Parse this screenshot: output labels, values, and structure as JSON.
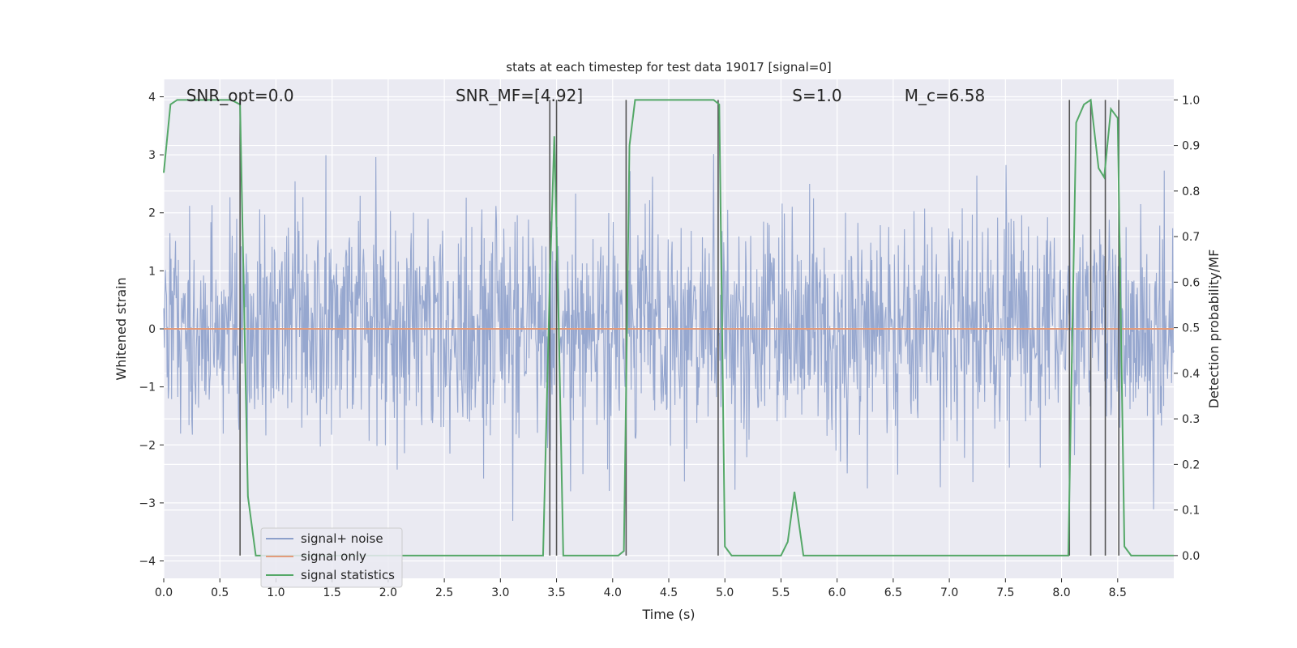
{
  "chart_data": {
    "type": "line",
    "title": "stats at each timestep for test data 19017 [signal=0]",
    "xlabel": "Time (s)",
    "ylabel": "Whitened strain",
    "ylabel_right": "Detection probability/MF",
    "xlim": [
      0,
      9
    ],
    "ylim": [
      -4.3,
      4.3
    ],
    "ylim_right": [
      -0.05,
      1.045
    ],
    "x_ticks": [
      0.0,
      0.5,
      1.0,
      1.5,
      2.0,
      2.5,
      3.0,
      3.5,
      4.0,
      4.5,
      5.0,
      5.5,
      6.0,
      6.5,
      7.0,
      7.5,
      8.0,
      8.5
    ],
    "x_tick_labels": [
      "0.0",
      "0.5",
      "1.0",
      "1.5",
      "2.0",
      "2.5",
      "3.0",
      "3.5",
      "4.0",
      "4.5",
      "5.0",
      "5.5",
      "6.0",
      "6.5",
      "7.0",
      "7.5",
      "8.0",
      "8.5"
    ],
    "y_ticks": [
      -4,
      -3,
      -2,
      -1,
      0,
      1,
      2,
      3,
      4
    ],
    "y_tick_labels": [
      "−4",
      "−3",
      "−2",
      "−1",
      "0",
      "1",
      "2",
      "3",
      "4"
    ],
    "y_right_ticks": [
      0.0,
      0.1,
      0.2,
      0.3,
      0.4,
      0.5,
      0.6,
      0.7,
      0.8,
      0.9,
      1.0
    ],
    "y_right_tick_labels": [
      "0.0",
      "0.1",
      "0.2",
      "0.3",
      "0.4",
      "0.5",
      "0.6",
      "0.7",
      "0.8",
      "0.9",
      "1.0"
    ],
    "grid": true,
    "legend_position": "lower-left",
    "annotations": [
      {
        "text": "SNR_opt=0.0",
        "x": 0.2
      },
      {
        "text": "SNR_MF=[4.92]",
        "x": 2.6
      },
      {
        "text": "S=1.0",
        "x": 5.6
      },
      {
        "text": "M_c=6.58",
        "x": 6.6
      }
    ],
    "series": [
      {
        "name": "signal+ noise",
        "color": "#8da0cb",
        "description_kind": "gaussian noise, whitened strain",
        "noise_std": 1.0,
        "sample_rate_hz": 200
      },
      {
        "name": "signal only",
        "color": "#e39b7b",
        "x": [
          0,
          9
        ],
        "y": [
          0,
          0
        ]
      },
      {
        "name": "signal statistics",
        "color": "#55a868",
        "axis": "right",
        "x": [
          0.0,
          0.06,
          0.12,
          0.2,
          0.6,
          0.68,
          0.75,
          0.82,
          0.9,
          1.5,
          2.5,
          3.38,
          3.44,
          3.48,
          3.52,
          3.56,
          3.6,
          4.05,
          4.1,
          4.15,
          4.2,
          4.5,
          4.9,
          4.95,
          5.0,
          5.06,
          5.5,
          5.56,
          5.62,
          5.7,
          5.75,
          6.5,
          7.5,
          8.06,
          8.13,
          8.2,
          8.26,
          8.33,
          8.38,
          8.44,
          8.5,
          8.56,
          8.62,
          9.0
        ],
        "y": [
          0.84,
          0.99,
          1.0,
          1.0,
          1.0,
          0.99,
          0.13,
          0.0,
          0.0,
          0.0,
          0.0,
          0.0,
          0.6,
          0.92,
          0.5,
          0.0,
          0.0,
          0.0,
          0.01,
          0.9,
          1.0,
          1.0,
          1.0,
          0.99,
          0.02,
          0.0,
          0.0,
          0.03,
          0.14,
          0.0,
          0.0,
          0.0,
          0.0,
          0.0,
          0.95,
          0.99,
          1.0,
          0.85,
          0.83,
          0.98,
          0.96,
          0.02,
          0.0,
          0.0
        ]
      }
    ],
    "vertical_lines": [
      0.68,
      3.44,
      3.5,
      4.12,
      4.94,
      8.07,
      8.26,
      8.39,
      8.51
    ],
    "vline_color": "#555555"
  }
}
